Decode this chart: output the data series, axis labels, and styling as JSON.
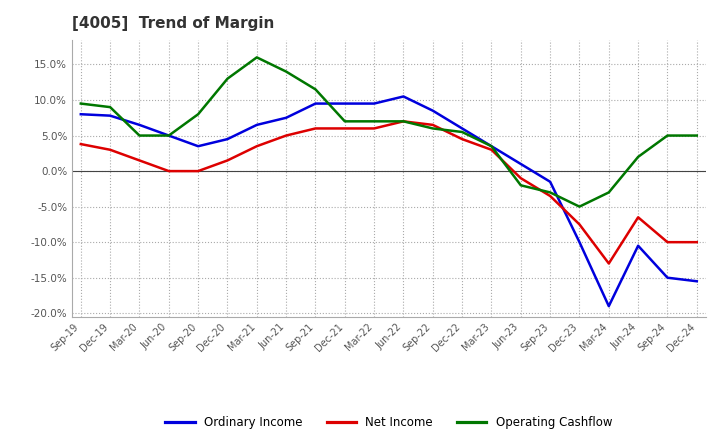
{
  "title": "[4005]  Trend of Margin",
  "title_fontsize": 11,
  "title_color": "#333333",
  "background_color": "#ffffff",
  "plot_bg_color": "#ffffff",
  "grid_color": "#aaaaaa",
  "x_labels": [
    "Sep-19",
    "Dec-19",
    "Mar-20",
    "Jun-20",
    "Sep-20",
    "Dec-20",
    "Mar-21",
    "Jun-21",
    "Sep-21",
    "Dec-21",
    "Mar-22",
    "Jun-22",
    "Sep-22",
    "Dec-22",
    "Mar-23",
    "Jun-23",
    "Sep-23",
    "Dec-23",
    "Mar-24",
    "Jun-24",
    "Sep-24",
    "Dec-24"
  ],
  "ordinary_income": [
    8.0,
    7.8,
    6.5,
    5.0,
    3.5,
    4.5,
    6.5,
    7.5,
    9.5,
    9.5,
    9.5,
    10.5,
    8.5,
    6.0,
    3.5,
    1.0,
    -1.5,
    -10.0,
    -19.0,
    -10.5,
    -15.0,
    -15.5
  ],
  "net_income": [
    3.8,
    3.0,
    1.5,
    0.0,
    0.0,
    1.5,
    3.5,
    5.0,
    6.0,
    6.0,
    6.0,
    7.0,
    6.5,
    4.5,
    3.0,
    -1.0,
    -3.5,
    -7.5,
    -13.0,
    -6.5,
    -10.0,
    -10.0
  ],
  "operating_cf": [
    9.5,
    9.0,
    5.0,
    5.0,
    8.0,
    13.0,
    16.0,
    14.0,
    11.5,
    7.0,
    7.0,
    7.0,
    6.0,
    5.5,
    3.5,
    -2.0,
    -3.0,
    -5.0,
    -3.0,
    2.0,
    5.0,
    5.0
  ],
  "ylim": [
    -20.5,
    18.5
  ],
  "yticks": [
    -20.0,
    -15.0,
    -10.0,
    -5.0,
    0.0,
    5.0,
    10.0,
    15.0
  ],
  "line_colors": {
    "ordinary_income": "#0000dd",
    "net_income": "#dd0000",
    "operating_cf": "#007700"
  },
  "line_width": 1.8,
  "legend_labels": [
    "Ordinary Income",
    "Net Income",
    "Operating Cashflow"
  ],
  "legend_colors": [
    "#0000dd",
    "#dd0000",
    "#007700"
  ]
}
